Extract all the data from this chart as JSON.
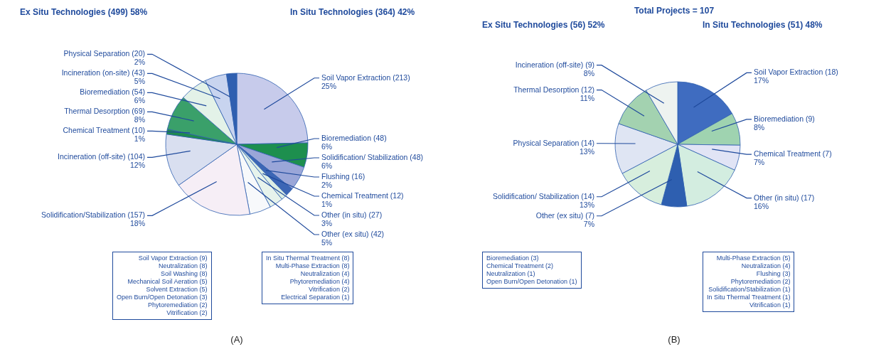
{
  "chart_data": [
    {
      "type": "pie",
      "categories": [
        "Soil Vapor Extraction",
        "Bioremediation",
        "Solidification/ Stabilization",
        "Flushing",
        "Chemical Treatment",
        "Other (in situ)",
        "Other (ex situ)",
        "Solidification/Stabilization",
        "Incineration (off-site)",
        "Chemical Treatment",
        "Thermal Desorption",
        "Bioremediation",
        "Incineration (on-site)",
        "Physical Separation"
      ],
      "values": [
        213,
        48,
        48,
        16,
        12,
        27,
        42,
        157,
        104,
        10,
        69,
        54,
        43,
        20
      ],
      "colors": [
        "#c7cbeb",
        "#1d8f4e",
        "#9aa6d8",
        "#3c66b5",
        "#dceee4",
        "#e6f3ec",
        "#f7f9fb",
        "#f6eef6",
        "#d9dff0",
        "#1e8a4f",
        "#3aa06a",
        "#e3f2e8",
        "#c8d4ef",
        "#2f5fb0"
      ],
      "value_labels": [
        "(213) 25%",
        "(48) 6%",
        "(48) 6%",
        "(16) 2%",
        "(12) 1%",
        "(27) 3%",
        "(42) 5%",
        "(157) 18%",
        "(104) 12%",
        "(10) 1%",
        "(69) 8%",
        "(54) 6%",
        "(43) 5%",
        "(20) 2%"
      ],
      "annotations": [
        "Ex Situ Technologies (499) 58%",
        "In Situ Technologies (364) 42%",
        "Soil Vapor Extraction (9)\nNeutralization (8)\nSoil Washing (8)\nMechanical Soil Aeration (5)\nSolvent Extraction (5)\nOpen Burn/Open Detonation (3)\nPhytoremediation (2)\nVitrification (2)",
        "In Situ Thermal Treatment (8)\nMulti-Phase Extraction (8)\nNeutralization (4)\nPhytoremediation (4)\nVitrification (2)\nElectrical Separation (1)",
        "(A)"
      ]
    },
    {
      "type": "pie",
      "title": "Total Projects = 107",
      "categories": [
        "Soil Vapor Extraction",
        "Bioremediation",
        "Chemical Treatment",
        "Other (in situ)",
        "Other (ex situ)",
        "Solidification/ Stabilization",
        "Physical Separation",
        "Thermal Desorption",
        "Incineration (off-site)"
      ],
      "values": [
        18,
        9,
        7,
        17,
        7,
        14,
        14,
        12,
        9
      ],
      "colors": [
        "#3f6cc0",
        "#9fd3b0",
        "#e1e4f5",
        "#d3ede0",
        "#2e5fb0",
        "#d7eedd",
        "#dfe5f3",
        "#a3d2b0",
        "#eef3f0"
      ],
      "value_labels": [
        "(18) 17%",
        "(9) 8%",
        "(7) 7%",
        "(17) 16%",
        "(7) 7%",
        "(14) 13%",
        "(14) 13%",
        "(12) 11%",
        "(9) 8%"
      ],
      "annotations": [
        "Ex Situ Technologies (56) 52%",
        "In Situ Technologies (51) 48%",
        "Bioremediation (3)\nChemical Treatment (2)\nNeutralization (1)\nOpen Burn/Open Detonation (1)",
        "Multi-Phase Extraction (5)\nNeutralization (4)\nFlushing (3)\nPhytoremediation (2)\nSolidification/Stabilization (1)\nIn Situ Thermal Treatment (1)\nVitrification (1)",
        "(B)"
      ]
    }
  ]
}
